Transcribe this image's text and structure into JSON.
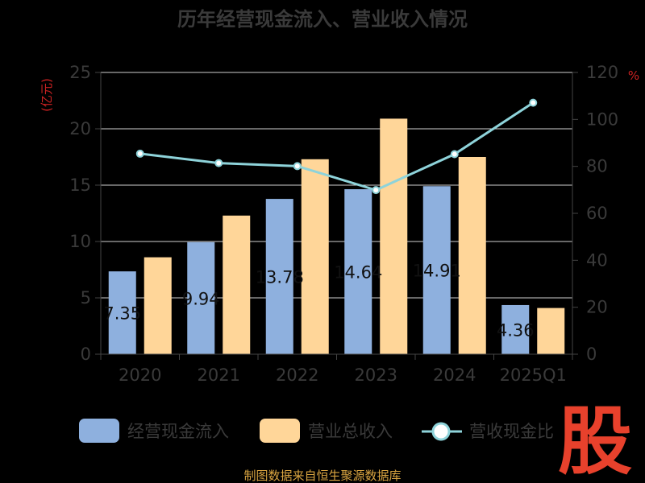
{
  "chart_data": {
    "type": "bar",
    "title": "历年经营现金流入、营业收入情况",
    "categories": [
      "2020",
      "2021",
      "2022",
      "2023",
      "2024",
      "2025Q1"
    ],
    "series": [
      {
        "name": "经营现金流入",
        "type": "bar",
        "axis": "left",
        "color": "#8EB0DE",
        "values": [
          7.35,
          9.94,
          13.78,
          14.64,
          14.91,
          4.36
        ],
        "labels": [
          "7.35",
          "9.94",
          "13.78",
          "14.64",
          "14.91",
          "4.36"
        ]
      },
      {
        "name": "营业总收入",
        "type": "bar",
        "axis": "left",
        "color": "#FFD699",
        "values": [
          8.6,
          12.3,
          17.3,
          20.9,
          17.5,
          4.1
        ]
      },
      {
        "name": "营收现金比",
        "type": "line",
        "axis": "right",
        "color": "#8ED3DA",
        "values": [
          85.4,
          81.4,
          80.1,
          69.9,
          85.2,
          107.1
        ]
      }
    ],
    "left_axis": {
      "unit_label": "(亿元)",
      "ylim": [
        0,
        25
      ],
      "ticks": [
        "0",
        "5",
        "10",
        "15",
        "20",
        "25"
      ]
    },
    "right_axis": {
      "unit_label": "%",
      "ylim": [
        0,
        120
      ],
      "ticks": [
        "0",
        "20",
        "40",
        "60",
        "80",
        "100",
        "120"
      ]
    },
    "grid": true,
    "legend_position": "bottom"
  },
  "footer": {
    "source": "制图数据来自恒生聚源数据库"
  },
  "watermark": {
    "text": "股",
    "color": "#E8412C"
  }
}
